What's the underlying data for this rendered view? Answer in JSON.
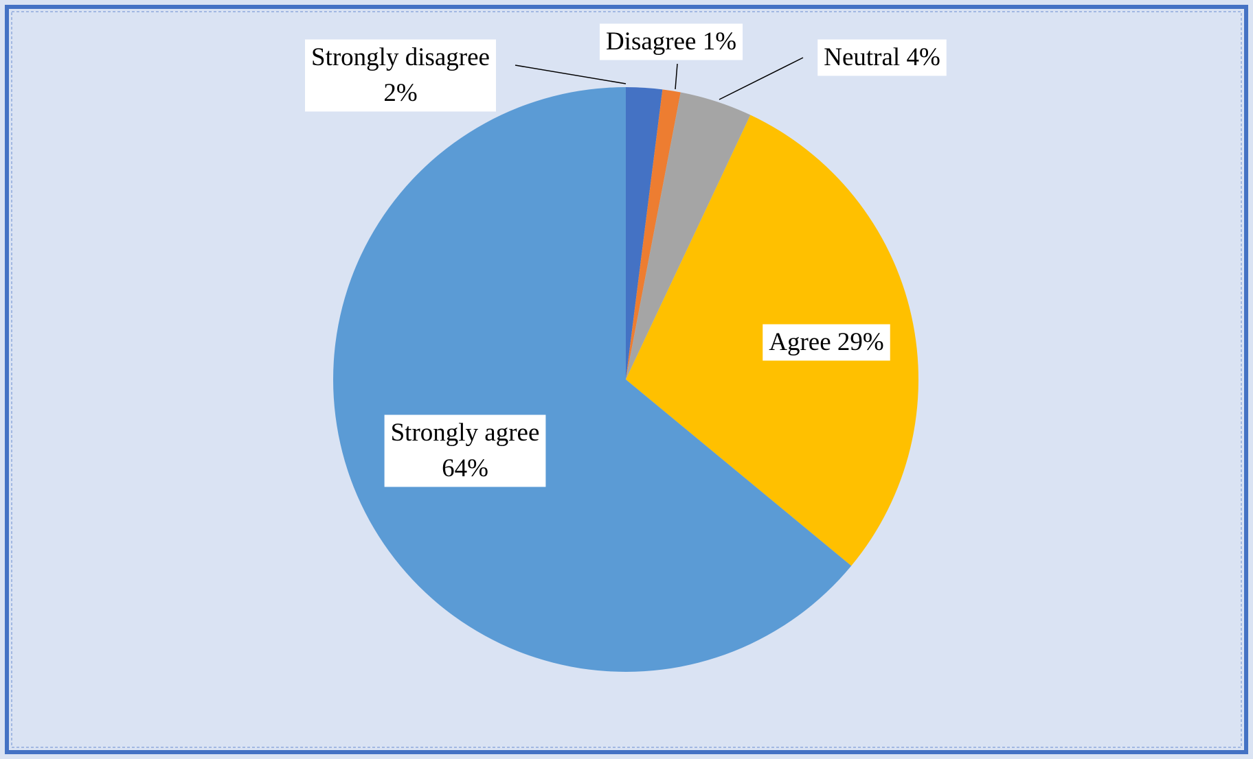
{
  "chart_data": {
    "type": "pie",
    "categories": [
      "Strongly disagree",
      "Disagree",
      "Neutral",
      "Agree",
      "Strongly agree"
    ],
    "values": [
      2,
      1,
      4,
      29,
      64
    ],
    "value_labels": [
      "2%",
      "1%",
      "4%",
      "29%",
      "64%"
    ],
    "colors": [
      "#4472c4",
      "#ed7d31",
      "#a5a5a5",
      "#ffc000",
      "#5b9bd5"
    ]
  }
}
